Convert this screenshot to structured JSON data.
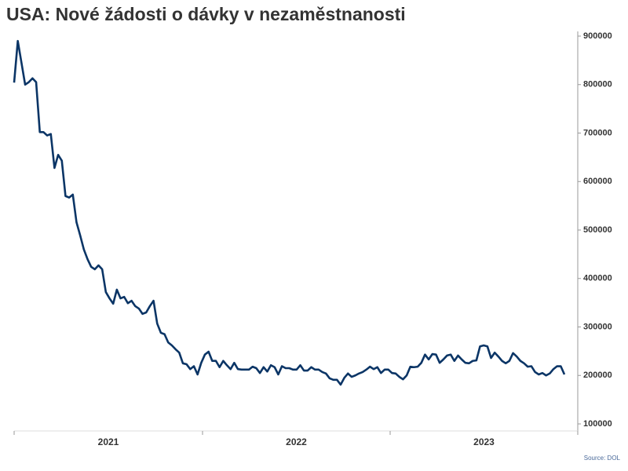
{
  "chart_data": {
    "type": "line",
    "title": "USA: Nové žádosti o dávky v nezaměstnanosti",
    "source": "Source: DOL",
    "x_labels": [
      "2021",
      "2022",
      "2023"
    ],
    "ylim": [
      100000,
      900000
    ],
    "yticks": [
      100000,
      200000,
      300000,
      400000,
      500000,
      600000,
      700000,
      800000,
      900000
    ],
    "color": "#0b3566",
    "values": [
      804000,
      890000,
      845000,
      800000,
      805000,
      813000,
      805000,
      702000,
      702000,
      695000,
      698000,
      628000,
      655000,
      643000,
      570000,
      567000,
      573000,
      516000,
      489000,
      460000,
      440000,
      424000,
      419000,
      427000,
      419000,
      372000,
      359000,
      348000,
      377000,
      359000,
      362000,
      349000,
      354000,
      343000,
      338000,
      327000,
      330000,
      343000,
      354000,
      307000,
      288000,
      285000,
      268000,
      262000,
      254000,
      247000,
      225000,
      223000,
      213000,
      219000,
      202000,
      226000,
      243000,
      249000,
      230000,
      230000,
      217000,
      230000,
      221000,
      213000,
      226000,
      213000,
      212000,
      212000,
      212000,
      218000,
      215000,
      205000,
      217000,
      208000,
      221000,
      217000,
      202000,
      219000,
      215000,
      215000,
      212000,
      212000,
      221000,
      210000,
      210000,
      217000,
      212000,
      212000,
      207000,
      204000,
      194000,
      191000,
      191000,
      181000,
      195000,
      204000,
      197000,
      200000,
      204000,
      207000,
      212000,
      218000,
      213000,
      217000,
      205000,
      212000,
      212000,
      205000,
      204000,
      197000,
      192000,
      200000,
      218000,
      217000,
      218000,
      226000,
      243000,
      233000,
      244000,
      243000,
      226000,
      233000,
      241000,
      243000,
      230000,
      241000,
      233000,
      226000,
      225000,
      230000,
      231000,
      260000,
      262000,
      260000,
      236000,
      247000,
      239000,
      230000,
      225000,
      230000,
      246000,
      239000,
      230000,
      225000,
      218000,
      219000,
      207000,
      202000,
      205000,
      200000,
      204000,
      213000,
      219000,
      219000,
      202000
    ]
  }
}
